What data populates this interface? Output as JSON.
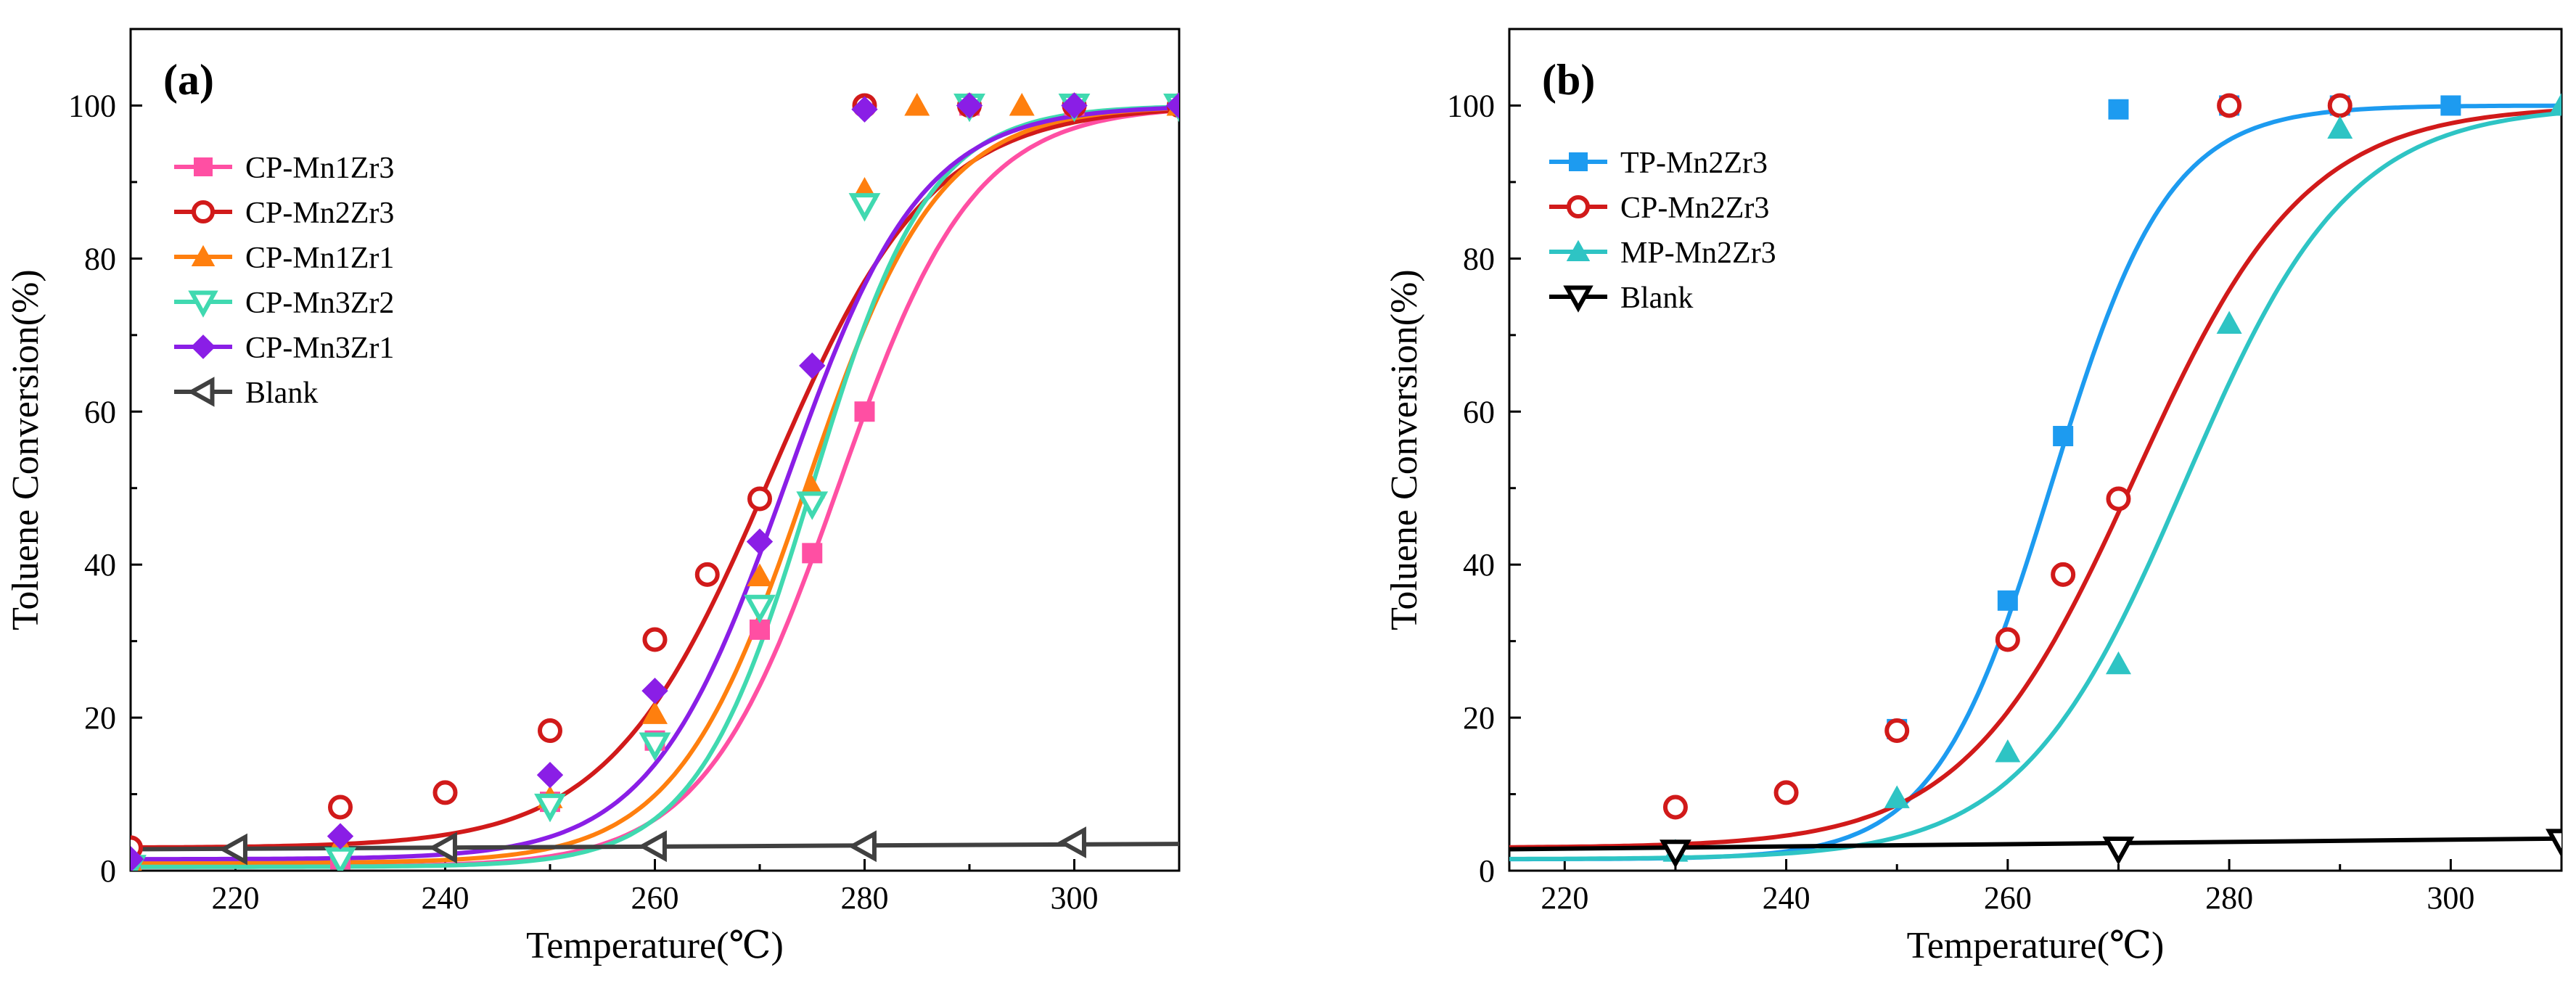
{
  "chart_data": [
    {
      "type": "line",
      "panel_label": "(a)",
      "xlabel": "Temperature(℃)",
      "ylabel": "Toluene Conversion(%)",
      "xlim": [
        210,
        310
      ],
      "ylim": [
        0,
        110
      ],
      "xticks": [
        220,
        240,
        260,
        280,
        300
      ],
      "xtick_labels": [
        "220",
        "240",
        "260",
        "280",
        "300"
      ],
      "yticks": [
        0,
        20,
        40,
        60,
        80,
        100
      ],
      "ytick_labels": [
        "0",
        "20",
        "40",
        "60",
        "80",
        "100"
      ],
      "legend_position": "upper-left",
      "series": [
        {
          "name": "CP-Mn1Zr3",
          "color": "#ff4fa3",
          "marker": "square",
          "filled": true,
          "x": [
            210,
            230,
            250,
            260,
            270,
            275,
            280,
            290,
            300,
            310
          ],
          "y": [
            0.5,
            1.5,
            9,
            17,
            31.5,
            41.5,
            60,
            100,
            100,
            100
          ],
          "curve": {
            "bottom": 0.5,
            "top": 100,
            "x0": 277.5,
            "k": 0.155
          }
        },
        {
          "name": "CP-Mn2Zr3",
          "color": "#d11a1a",
          "marker": "circle",
          "filled": false,
          "x": [
            210,
            230,
            240,
            250,
            260,
            265,
            270,
            280,
            290,
            300,
            310
          ],
          "y": [
            3,
            8.3,
            10.2,
            18.3,
            30.2,
            38.7,
            48.6,
            100,
            100,
            100,
            100
          ],
          "curve": {
            "bottom": 3,
            "top": 100,
            "x0": 271,
            "k": 0.13
          }
        },
        {
          "name": "CP-Mn1Zr1",
          "color": "#ff7f0e",
          "marker": "triangle-up",
          "filled": true,
          "x": [
            210,
            230,
            250,
            260,
            270,
            275,
            280,
            285,
            295,
            310
          ],
          "y": [
            1,
            3.5,
            9.5,
            20.5,
            38.5,
            50,
            89,
            100,
            100,
            100
          ],
          "curve": {
            "bottom": 1,
            "top": 100,
            "x0": 274.5,
            "k": 0.16
          }
        },
        {
          "name": "CP-Mn3Zr2",
          "color": "#40d9b0",
          "marker": "triangle-down",
          "filled": false,
          "x": [
            210,
            230,
            250,
            260,
            270,
            275,
            280,
            290,
            300,
            310
          ],
          "y": [
            0.5,
            1.5,
            8.5,
            16.5,
            34.5,
            48,
            87,
            100,
            100,
            100
          ],
          "curve": {
            "bottom": 0.5,
            "top": 100,
            "x0": 275,
            "k": 0.18
          }
        },
        {
          "name": "CP-Mn3Zr1",
          "color": "#8a1ee6",
          "marker": "diamond",
          "filled": true,
          "x": [
            210,
            230,
            250,
            260,
            270,
            275,
            280,
            290,
            300,
            310
          ],
          "y": [
            1.5,
            4.5,
            12.5,
            23.5,
            43,
            66,
            99.5,
            100,
            100,
            100
          ],
          "curve": {
            "bottom": 1.5,
            "top": 100,
            "x0": 272.5,
            "k": 0.155
          }
        },
        {
          "name": "Blank",
          "color": "#404040",
          "marker": "triangle-left",
          "filled": false,
          "x": [
            220,
            240,
            260,
            280,
            300
          ],
          "y": [
            2.8,
            3.0,
            3.2,
            3.2,
            3.7
          ],
          "linear": {
            "x": [
              210,
              310
            ],
            "y": [
              2.8,
              3.5
            ]
          }
        }
      ]
    },
    {
      "type": "line",
      "panel_label": "(b)",
      "xlabel": "Temperature(℃)",
      "ylabel": "Toluene Conversion(%)",
      "xlim": [
        215,
        310
      ],
      "ylim": [
        0,
        110
      ],
      "xticks": [
        220,
        240,
        260,
        280,
        300
      ],
      "xtick_labels": [
        "220",
        "240",
        "260",
        "280",
        "300"
      ],
      "yticks": [
        0,
        20,
        40,
        60,
        80,
        100
      ],
      "ytick_labels": [
        "0",
        "20",
        "40",
        "60",
        "80",
        "100"
      ],
      "legend_position": "upper-left",
      "series": [
        {
          "name": "TP-Mn2Zr3",
          "color": "#1d9bf0",
          "marker": "square",
          "filled": true,
          "x": [
            250,
            260,
            265,
            270,
            280,
            290,
            300
          ],
          "y": [
            18.5,
            35.3,
            56.8,
            99.5,
            100,
            100,
            100
          ],
          "curve": {
            "bottom": 1.5,
            "top": 100,
            "x0": 264,
            "k": 0.19
          }
        },
        {
          "name": "CP-Mn2Zr3",
          "color": "#d11a1a",
          "marker": "circle",
          "filled": false,
          "x": [
            230,
            240,
            250,
            260,
            265,
            270,
            280,
            290
          ],
          "y": [
            8.3,
            10.2,
            18.3,
            30.2,
            38.7,
            48.6,
            100,
            100
          ],
          "curve": {
            "bottom": 3,
            "top": 100,
            "x0": 271.5,
            "k": 0.13
          }
        },
        {
          "name": "MP-Mn2Zr3",
          "color": "#2ec4c4",
          "marker": "triangle-up",
          "filled": true,
          "x": [
            230,
            250,
            260,
            270,
            280,
            290,
            310
          ],
          "y": [
            2.5,
            9.5,
            15.5,
            27,
            71.5,
            97,
            100
          ],
          "curve": {
            "bottom": 1.5,
            "top": 100,
            "x0": 276,
            "k": 0.135
          }
        },
        {
          "name": "Blank",
          "color": "#000000",
          "marker": "triangle-down",
          "filled": false,
          "x": [
            230,
            270,
            310
          ],
          "y": [
            2.5,
            2.9,
            3.9
          ],
          "linear": {
            "x": [
              215,
              310
            ],
            "y": [
              2.8,
              4.2
            ]
          }
        }
      ]
    }
  ]
}
